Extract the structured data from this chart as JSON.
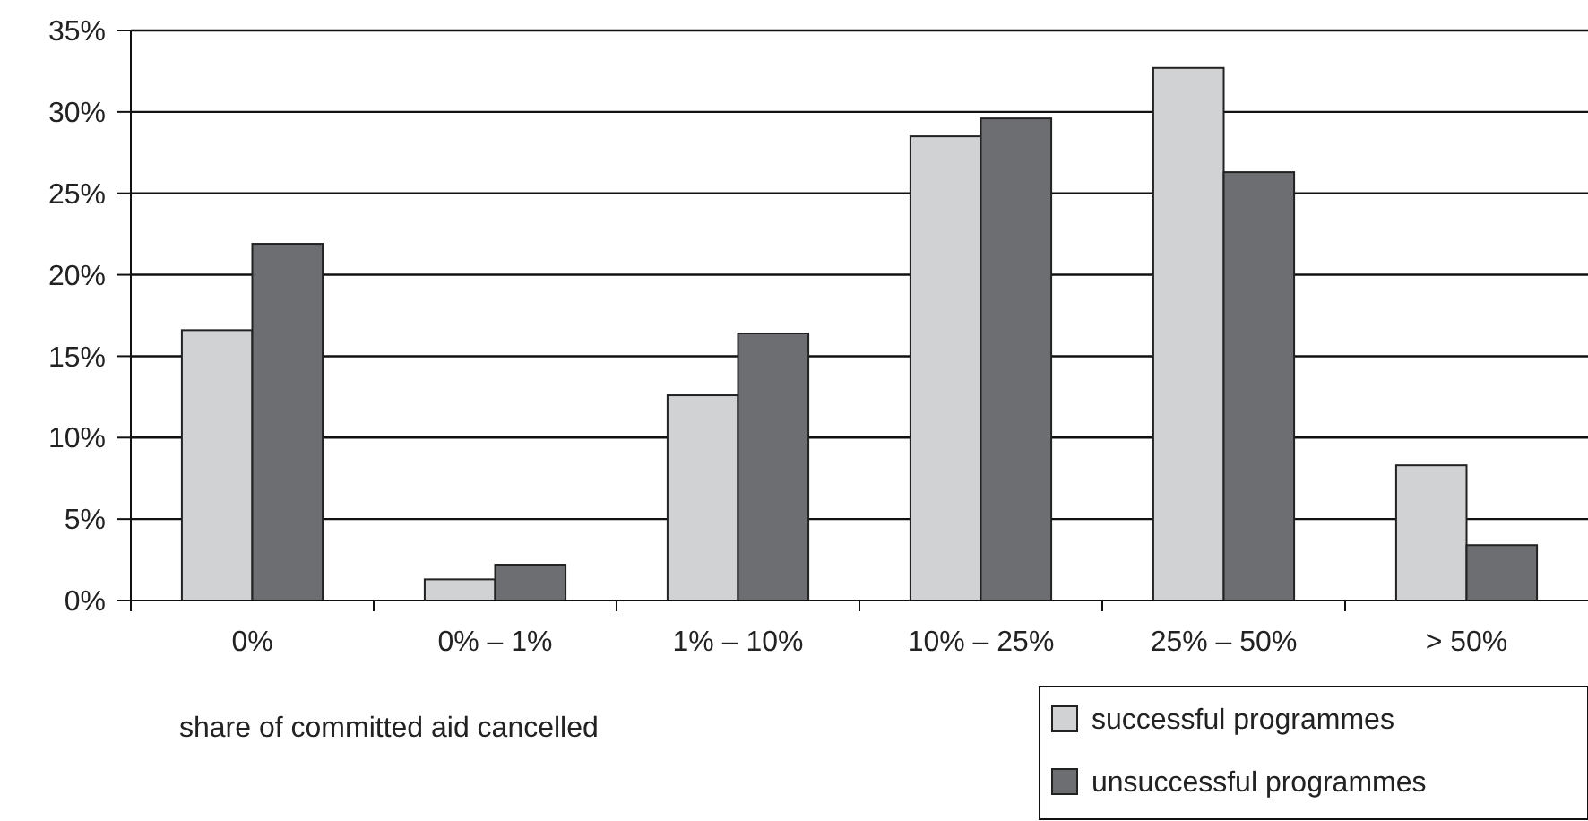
{
  "chart_data": {
    "type": "bar",
    "xlabel": "share of committed aid cancelled",
    "categories": [
      "0%",
      "0% – 1%",
      "1% – 10%",
      "10% – 25%",
      "25% – 50%",
      "> 50%"
    ],
    "series": [
      {
        "name": "successful programmes",
        "color": "#d1d2d4",
        "values": [
          16.6,
          1.3,
          12.6,
          28.5,
          32.7,
          8.3
        ]
      },
      {
        "name": "unsuccessful programmes",
        "color": "#6d6e71",
        "values": [
          21.9,
          2.2,
          16.4,
          29.6,
          26.3,
          3.4
        ]
      }
    ],
    "ylim": [
      0,
      35
    ],
    "yticks": [
      {
        "value": 0,
        "label": "0%"
      },
      {
        "value": 5,
        "label": "5%"
      },
      {
        "value": 10,
        "label": "10%"
      },
      {
        "value": 15,
        "label": "15%"
      },
      {
        "value": 20,
        "label": "20%"
      },
      {
        "value": 25,
        "label": "25%"
      },
      {
        "value": 30,
        "label": "30%"
      },
      {
        "value": 35,
        "label": "35%"
      }
    ],
    "grid": "y",
    "legend": "bottom right"
  }
}
